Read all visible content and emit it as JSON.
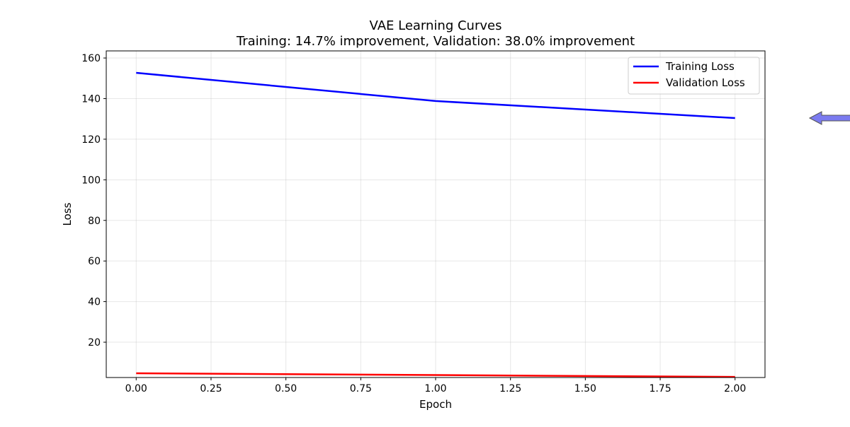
{
  "chart_data": {
    "type": "line",
    "title": "VAE Learning Curves",
    "subtitle": "Training: 14.7% improvement, Validation: 38.0% improvement",
    "xlabel": "Epoch",
    "ylabel": "Loss",
    "xlim": [
      -0.1,
      2.1
    ],
    "ylim": [
      2.6,
      163.5
    ],
    "xticks": [
      "0.00",
      "0.25",
      "0.50",
      "0.75",
      "1.00",
      "1.25",
      "1.50",
      "1.75",
      "2.00"
    ],
    "yticks": [
      "20",
      "40",
      "60",
      "80",
      "100",
      "120",
      "140",
      "160"
    ],
    "grid": true,
    "legend_position": "top-right",
    "x": [
      0,
      1,
      2
    ],
    "series": [
      {
        "name": "Training Loss",
        "color": "#0000ff",
        "values": [
          152.7,
          138.8,
          130.4
        ]
      },
      {
        "name": "Validation Loss",
        "color": "#ff0000",
        "values": [
          4.7,
          3.8,
          2.9
        ]
      }
    ],
    "annotation_arrow": {
      "color": "#7b7bf0",
      "direction": "left"
    }
  }
}
